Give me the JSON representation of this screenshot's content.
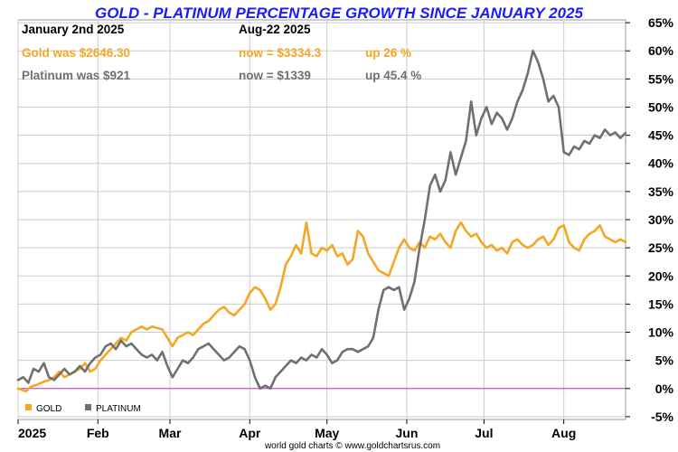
{
  "header": {
    "title": "GOLD - PLATINUM PERCENTAGE GROWTH SINCE JANUARY 2025",
    "start_date": "January 2nd 2025",
    "end_date": "Aug-22  2025",
    "gold_was": "Gold was $2646.30",
    "gold_now": "now = $3334.3",
    "gold_up": "up 26 %",
    "platinum_was": "Platinum was $921",
    "platinum_now": "now = $1339",
    "platinum_up": "up 45.4 %"
  },
  "footer": "world gold charts © www.goldchartsrus.com",
  "colors": {
    "title": "#1a1aff",
    "gold": "#f5a623",
    "platinum": "#707070",
    "zero_line": "#cc33cc",
    "grid": "#cccccc"
  },
  "chart_data": {
    "type": "line",
    "title": "GOLD - PLATINUM PERCENTAGE GROWTH SINCE JANUARY 2025",
    "x_ticks": [
      "2025",
      "Feb",
      "Mar",
      "Apr",
      "May",
      "Jun",
      "Jul",
      "Aug"
    ],
    "x_tick_days": [
      0,
      31,
      59,
      90,
      120,
      151,
      181,
      212
    ],
    "y_ticks": [
      "-5%",
      "0%",
      "5%",
      "10%",
      "15%",
      "20%",
      "25%",
      "30%",
      "35%",
      "40%",
      "45%",
      "50%",
      "55%",
      "60%",
      "65%"
    ],
    "y_tick_values": [
      -5,
      0,
      5,
      10,
      15,
      20,
      25,
      30,
      35,
      40,
      45,
      50,
      55,
      60,
      65
    ],
    "ylim": [
      -5.5,
      65.5
    ],
    "xlim_days": [
      0,
      236
    ],
    "grid": true,
    "legend": "bottom-left",
    "legend_items": [
      "GOLD",
      "PLATINUM"
    ],
    "series": [
      {
        "name": "GOLD",
        "color": "#f5a623",
        "points": [
          [
            0,
            0
          ],
          [
            3,
            -0.5
          ],
          [
            5,
            0.3
          ],
          [
            8,
            0.8
          ],
          [
            10,
            1.2
          ],
          [
            12,
            1.5
          ],
          [
            14,
            2
          ],
          [
            16,
            3
          ],
          [
            18,
            2
          ],
          [
            20,
            2.5
          ],
          [
            22,
            3
          ],
          [
            24,
            3.5
          ],
          [
            26,
            4.5
          ],
          [
            28,
            3
          ],
          [
            30,
            3.5
          ],
          [
            32,
            5
          ],
          [
            34,
            6
          ],
          [
            36,
            7
          ],
          [
            38,
            8
          ],
          [
            40,
            9
          ],
          [
            42,
            8.5
          ],
          [
            44,
            10
          ],
          [
            46,
            10.5
          ],
          [
            48,
            11
          ],
          [
            50,
            10.5
          ],
          [
            52,
            11
          ],
          [
            56,
            10.5
          ],
          [
            58,
            9
          ],
          [
            60,
            7.5
          ],
          [
            62,
            9
          ],
          [
            64,
            9.5
          ],
          [
            66,
            10
          ],
          [
            68,
            9.5
          ],
          [
            70,
            10.5
          ],
          [
            72,
            11.5
          ],
          [
            74,
            12
          ],
          [
            76,
            13
          ],
          [
            78,
            14
          ],
          [
            80,
            14.5
          ],
          [
            82,
            13.5
          ],
          [
            84,
            13
          ],
          [
            86,
            14
          ],
          [
            88,
            15
          ],
          [
            90,
            17
          ],
          [
            92,
            18
          ],
          [
            94,
            17.5
          ],
          [
            96,
            16
          ],
          [
            98,
            14
          ],
          [
            100,
            15
          ],
          [
            102,
            18
          ],
          [
            104,
            22
          ],
          [
            106,
            23.5
          ],
          [
            108,
            25.5
          ],
          [
            110,
            24
          ],
          [
            112,
            29.5
          ],
          [
            114,
            24
          ],
          [
            116,
            23.5
          ],
          [
            118,
            25
          ],
          [
            120,
            24.5
          ],
          [
            122,
            25.5
          ],
          [
            124,
            23.5
          ],
          [
            126,
            24
          ],
          [
            128,
            22
          ],
          [
            130,
            23
          ],
          [
            132,
            28
          ],
          [
            134,
            27
          ],
          [
            136,
            24
          ],
          [
            138,
            22.5
          ],
          [
            140,
            21
          ],
          [
            142,
            20.5
          ],
          [
            144,
            20
          ],
          [
            146,
            22.5
          ],
          [
            148,
            25
          ],
          [
            150,
            26.5
          ],
          [
            152,
            25
          ],
          [
            154,
            24.5
          ],
          [
            156,
            26
          ],
          [
            158,
            25
          ],
          [
            160,
            27
          ],
          [
            162,
            26.5
          ],
          [
            164,
            27.5
          ],
          [
            166,
            26
          ],
          [
            168,
            25
          ],
          [
            170,
            28
          ],
          [
            172,
            29.5
          ],
          [
            174,
            28
          ],
          [
            176,
            27
          ],
          [
            178,
            27.5
          ],
          [
            180,
            26
          ],
          [
            182,
            25
          ],
          [
            184,
            25.5
          ],
          [
            186,
            24.5
          ],
          [
            188,
            25
          ],
          [
            190,
            24
          ],
          [
            192,
            26
          ],
          [
            194,
            26.5
          ],
          [
            196,
            25.5
          ],
          [
            198,
            25
          ],
          [
            200,
            25.5
          ],
          [
            202,
            26.5
          ],
          [
            204,
            27
          ],
          [
            206,
            25.5
          ],
          [
            208,
            26.5
          ],
          [
            210,
            28.5
          ],
          [
            212,
            29
          ],
          [
            214,
            26
          ],
          [
            216,
            25
          ],
          [
            218,
            24.5
          ],
          [
            220,
            26.5
          ],
          [
            222,
            27.5
          ],
          [
            224,
            28
          ],
          [
            226,
            29
          ],
          [
            228,
            27
          ],
          [
            230,
            26.5
          ],
          [
            232,
            26
          ],
          [
            234,
            26.5
          ],
          [
            236,
            26
          ]
        ]
      },
      {
        "name": "PLATINUM",
        "color": "#707070",
        "points": [
          [
            0,
            1.5
          ],
          [
            2,
            2
          ],
          [
            4,
            1
          ],
          [
            6,
            3.5
          ],
          [
            8,
            3
          ],
          [
            10,
            4.5
          ],
          [
            12,
            2
          ],
          [
            14,
            1.5
          ],
          [
            16,
            2.5
          ],
          [
            18,
            3.5
          ],
          [
            20,
            2.5
          ],
          [
            22,
            3
          ],
          [
            24,
            4
          ],
          [
            26,
            3
          ],
          [
            28,
            4.5
          ],
          [
            30,
            5.5
          ],
          [
            32,
            6
          ],
          [
            34,
            7.5
          ],
          [
            36,
            8
          ],
          [
            38,
            7
          ],
          [
            40,
            8.5
          ],
          [
            42,
            7.5
          ],
          [
            44,
            8
          ],
          [
            46,
            7
          ],
          [
            48,
            6
          ],
          [
            50,
            5.5
          ],
          [
            52,
            6
          ],
          [
            54,
            5
          ],
          [
            56,
            6.5
          ],
          [
            58,
            4
          ],
          [
            60,
            2
          ],
          [
            62,
            3.5
          ],
          [
            64,
            5
          ],
          [
            66,
            4.5
          ],
          [
            68,
            5.5
          ],
          [
            70,
            7
          ],
          [
            72,
            7.5
          ],
          [
            74,
            8
          ],
          [
            76,
            7
          ],
          [
            78,
            6
          ],
          [
            80,
            5
          ],
          [
            82,
            5.5
          ],
          [
            84,
            6.5
          ],
          [
            86,
            7.5
          ],
          [
            88,
            7
          ],
          [
            90,
            5
          ],
          [
            92,
            2
          ],
          [
            94,
            0
          ],
          [
            96,
            0.5
          ],
          [
            98,
            0
          ],
          [
            100,
            2
          ],
          [
            102,
            3
          ],
          [
            104,
            4
          ],
          [
            106,
            5
          ],
          [
            108,
            4.5
          ],
          [
            110,
            5.5
          ],
          [
            112,
            5
          ],
          [
            114,
            6
          ],
          [
            116,
            5.5
          ],
          [
            118,
            7
          ],
          [
            120,
            6
          ],
          [
            122,
            4.5
          ],
          [
            124,
            5
          ],
          [
            126,
            6.5
          ],
          [
            128,
            7
          ],
          [
            130,
            7
          ],
          [
            132,
            6.5
          ],
          [
            134,
            7
          ],
          [
            136,
            7.5
          ],
          [
            138,
            9
          ],
          [
            140,
            14
          ],
          [
            142,
            17.5
          ],
          [
            144,
            18
          ],
          [
            146,
            17.5
          ],
          [
            148,
            18
          ],
          [
            150,
            14
          ],
          [
            152,
            16
          ],
          [
            154,
            19
          ],
          [
            156,
            25
          ],
          [
            158,
            30
          ],
          [
            160,
            36
          ],
          [
            162,
            38
          ],
          [
            164,
            35
          ],
          [
            166,
            37
          ],
          [
            168,
            42
          ],
          [
            170,
            38
          ],
          [
            172,
            41
          ],
          [
            174,
            44
          ],
          [
            176,
            51
          ],
          [
            178,
            45
          ],
          [
            180,
            48
          ],
          [
            182,
            50
          ],
          [
            184,
            47
          ],
          [
            186,
            49
          ],
          [
            188,
            48
          ],
          [
            190,
            46
          ],
          [
            192,
            48
          ],
          [
            194,
            51
          ],
          [
            196,
            53
          ],
          [
            198,
            56
          ],
          [
            200,
            60
          ],
          [
            202,
            58
          ],
          [
            204,
            55
          ],
          [
            206,
            51
          ],
          [
            208,
            52
          ],
          [
            210,
            50
          ],
          [
            212,
            42
          ],
          [
            214,
            41.5
          ],
          [
            216,
            43
          ],
          [
            218,
            42.5
          ],
          [
            220,
            44
          ],
          [
            222,
            43.5
          ],
          [
            224,
            45
          ],
          [
            226,
            44.5
          ],
          [
            228,
            46
          ],
          [
            230,
            45
          ],
          [
            232,
            45.5
          ],
          [
            234,
            44.5
          ],
          [
            236,
            45.4
          ]
        ]
      }
    ]
  }
}
